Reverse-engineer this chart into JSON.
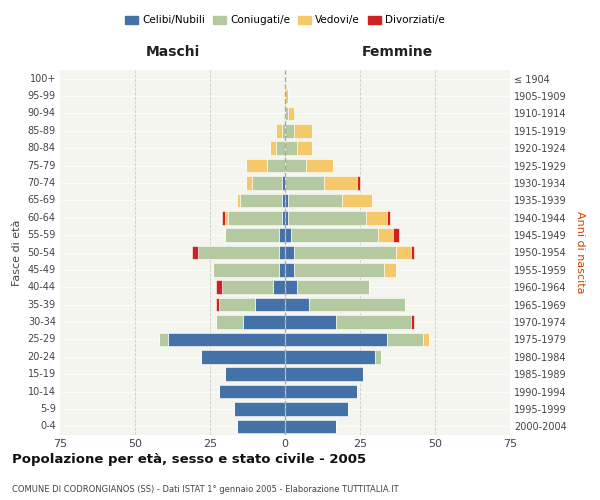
{
  "age_groups": [
    "0-4",
    "5-9",
    "10-14",
    "15-19",
    "20-24",
    "25-29",
    "30-34",
    "35-39",
    "40-44",
    "45-49",
    "50-54",
    "55-59",
    "60-64",
    "65-69",
    "70-74",
    "75-79",
    "80-84",
    "85-89",
    "90-94",
    "95-99",
    "100+"
  ],
  "birth_years": [
    "2000-2004",
    "1995-1999",
    "1990-1994",
    "1985-1989",
    "1980-1984",
    "1975-1979",
    "1970-1974",
    "1965-1969",
    "1960-1964",
    "1955-1959",
    "1950-1954",
    "1945-1949",
    "1940-1944",
    "1935-1939",
    "1930-1934",
    "1925-1929",
    "1920-1924",
    "1915-1919",
    "1910-1914",
    "1905-1909",
    "≤ 1904"
  ],
  "male": {
    "celibi": [
      16,
      17,
      22,
      20,
      28,
      39,
      14,
      10,
      4,
      2,
      2,
      2,
      1,
      1,
      1,
      0,
      0,
      0,
      0,
      0,
      0
    ],
    "coniugati": [
      0,
      0,
      0,
      0,
      0,
      3,
      9,
      12,
      17,
      22,
      27,
      18,
      18,
      14,
      10,
      6,
      3,
      1,
      0,
      0,
      0
    ],
    "vedovi": [
      0,
      0,
      0,
      0,
      0,
      0,
      0,
      0,
      0,
      0,
      0,
      0,
      1,
      1,
      2,
      7,
      2,
      2,
      0,
      0,
      0
    ],
    "divorziati": [
      0,
      0,
      0,
      0,
      0,
      0,
      0,
      1,
      2,
      0,
      2,
      0,
      1,
      0,
      0,
      0,
      0,
      0,
      0,
      0,
      0
    ]
  },
  "female": {
    "nubili": [
      17,
      21,
      24,
      26,
      30,
      34,
      17,
      8,
      4,
      3,
      3,
      2,
      1,
      1,
      0,
      0,
      0,
      0,
      0,
      0,
      0
    ],
    "coniugate": [
      0,
      0,
      0,
      0,
      2,
      12,
      25,
      32,
      24,
      30,
      34,
      29,
      26,
      18,
      13,
      7,
      4,
      3,
      1,
      0,
      0
    ],
    "vedove": [
      0,
      0,
      0,
      0,
      0,
      2,
      0,
      0,
      0,
      4,
      5,
      5,
      7,
      10,
      11,
      9,
      5,
      6,
      2,
      1,
      0
    ],
    "divorziate": [
      0,
      0,
      0,
      0,
      0,
      0,
      1,
      0,
      0,
      0,
      1,
      2,
      1,
      0,
      1,
      0,
      0,
      0,
      0,
      0,
      0
    ]
  },
  "colors": {
    "celibi": "#4472a8",
    "coniugati": "#b5c9a0",
    "vedovi": "#f5c96a",
    "divorziati": "#cc2222"
  },
  "xlim": 75,
  "title": "Popolazione per età, sesso e stato civile - 2005",
  "subtitle": "COMUNE DI CODRONGIANOS (SS) - Dati ISTAT 1° gennaio 2005 - Elaborazione TUTTITALIA.IT",
  "xlabel_left": "Maschi",
  "xlabel_right": "Femmine",
  "ylabel_left": "Fasce di età",
  "ylabel_right": "Anni di nascita",
  "legend_labels": [
    "Celibi/Nubili",
    "Coniugati/e",
    "Vedovi/e",
    "Divorziati/e"
  ],
  "bg_color": "#f5f5f0"
}
